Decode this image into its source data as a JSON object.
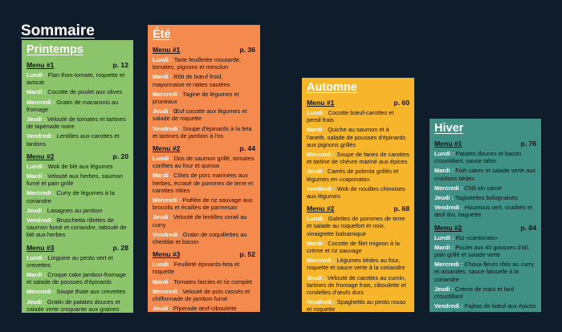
{
  "page_title": "Sommaire",
  "seasons": [
    {
      "id": "printemps",
      "title": "Printemps",
      "menus": [
        {
          "title": "Menu #1",
          "page": "p. 12",
          "days": [
            {
              "day": "Lundi",
              "text": "Flan thon-tomate, roquette et avocat"
            },
            {
              "day": "Mardi",
              "text": "Cocotte de poulet aux olives"
            },
            {
              "day": "Mercredi",
              "text": "Gratin de macaronis au fromage"
            },
            {
              "day": "Jeudi",
              "text": "Velouté de tomates et tartines de tapenade noire"
            },
            {
              "day": "Vendredi",
              "text": "Lentilles aux carottes et lardons"
            }
          ]
        },
        {
          "title": "Menu #2",
          "page": "p. 20",
          "days": [
            {
              "day": "Lundi",
              "text": "Wok de blé aux légumes"
            },
            {
              "day": "Mardi",
              "text": "Velouté aux herbes, saumon fumé et pain grillé"
            },
            {
              "day": "Mercredi",
              "text": "Curry de légumes à la coriandre"
            },
            {
              "day": "Jeudi",
              "text": "Lasagnes au jambon"
            },
            {
              "day": "Vendredi",
              "text": "Bruschetta rillettes de saumon fumé et coriandre, taboulé de blé aux herbes"
            }
          ]
        },
        {
          "title": "Menu #3",
          "page": "p. 28",
          "days": [
            {
              "day": "Lundi",
              "text": "Linguine au pesto vert et crevettes"
            },
            {
              "day": "Mardi",
              "text": "Croque cake jambon-fromage et salade de pousses d'épinards"
            },
            {
              "day": "Mercredi",
              "text": "Soupe thaïe aux crevettes"
            },
            {
              "day": "Jeudi",
              "text": "Gratin de patates douces et salade verte croquante aux graines"
            },
            {
              "day": "Vendredi",
              "text": "Osso-buco au fenouil"
            }
          ]
        }
      ]
    },
    {
      "id": "ete",
      "title": "Été",
      "menus": [
        {
          "title": "Menu #1",
          "page": "p. 36",
          "days": [
            {
              "day": "Lundi",
              "text": "Tarte feuilletée moutarde, tomates, pignons et mesclun"
            },
            {
              "day": "Mardi",
              "text": "Rôti de bœuf froid, mayonnaise et rattes sautées"
            },
            {
              "day": "Mercredi",
              "text": "Tagine de légumes et pruneaux"
            },
            {
              "day": "Jeudi",
              "text": "Œuf cocotte aux légumes et salade de roquette"
            },
            {
              "day": "Vendredi",
              "text": "Soupe d'épinards à la feta et tartines de jambon à l'os"
            }
          ]
        },
        {
          "title": "Menu #2",
          "page": "p. 44",
          "days": [
            {
              "day": "Lundi",
              "text": "Dos de saumon grillé, tomates confites au four et quinoa"
            },
            {
              "day": "Mardi",
              "text": "Côtes de porc marinées aux herbes, écrasé de pommes de terre et carottes rôties"
            },
            {
              "day": "Mercredi",
              "text": "Poêlée de riz sauvage aux brocolis et écailles de parmesan"
            },
            {
              "day": "Jeudi",
              "text": "Velouté de lentilles corail au curry"
            },
            {
              "day": "Vendredi",
              "text": "Gratin de coquillettes au cheddar et bacon"
            }
          ]
        },
        {
          "title": "Menu #3",
          "page": "p. 52",
          "days": [
            {
              "day": "Lundi",
              "text": "Feuilleté épinards-feta et roquette"
            },
            {
              "day": "Mardi",
              "text": "Tomates farcies et riz complet"
            },
            {
              "day": "Mercredi",
              "text": "Velouté de pois cassés et chiffonnade de jambon fumé"
            },
            {
              "day": "Jeudi",
              "text": "Piperade œuf-ciboulette"
            },
            {
              "day": "Vendredi",
              "text": "Salade complète et vinaigrette à l'orange"
            }
          ]
        }
      ]
    },
    {
      "id": "automne",
      "title": "Automne",
      "menus": [
        {
          "title": "Menu #1",
          "page": "p. 60",
          "days": [
            {
              "day": "Lundi",
              "text": "Cocotte bœuf-carottes et persil frais"
            },
            {
              "day": "Mardi",
              "text": "Quiche au saumon et à l'aneth, salade de pousses d'épinards aux pignons grillés"
            },
            {
              "day": "Mercredi",
              "text": "Soupe de fanes de carottes et tartine de chèvre mariné aux épices"
            },
            {
              "day": "Jeudi",
              "text": "Carrés de polenta grillés et légumes en «caponata»"
            },
            {
              "day": "Vendredi",
              "text": "Wok de nouilles chinoises aux légumes"
            }
          ]
        },
        {
          "title": "Menu #2",
          "page": "p. 68",
          "days": [
            {
              "day": "Lundi",
              "text": "Galettes de pommes de terre et salade au roquefort et noix, vinaigrette balsamique"
            },
            {
              "day": "Mardi",
              "text": "Cocotte de filet mignon à la crème et riz sauvage"
            },
            {
              "day": "Mercredi",
              "text": "Légumes tièdes au four, roquette et sauce verte à la coriandre"
            },
            {
              "day": "Jeudi",
              "text": "Velouté de carottes au cumin, tartines de fromage frais, ciboulette et rondelles d'œufs durs"
            },
            {
              "day": "Vendredi",
              "text": "Spaghettis au pesto rosso et roquette"
            }
          ]
        }
      ]
    },
    {
      "id": "hiver",
      "title": "Hiver",
      "menus": [
        {
          "title": "Menu #1",
          "page": "p. 76",
          "days": [
            {
              "day": "Lundi",
              "text": "Patates douces et bacon croustillant, sauce tahin"
            },
            {
              "day": "Mardi",
              "text": "Fish cakes et salade verte aux croûtons tièdes"
            },
            {
              "day": "Mercredi",
              "text": "Chili sin carne"
            },
            {
              "day": "Jeudi",
              "text": "Tagliatelles bolognaises"
            },
            {
              "day": "Vendredi",
              "text": "Houmous vert, crudités et œuf dur, baguette"
            }
          ]
        },
        {
          "title": "Menu #2",
          "page": "p. 84",
          "days": [
            {
              "day": "Lundi",
              "text": "Riz «cantonais»"
            },
            {
              "day": "Mardi",
              "text": "Poulet aux 40 gousses d'ail, pain grillé et salade verte"
            },
            {
              "day": "Mercredi",
              "text": "Choux-fleurs rôtis au curry et amandes, sauce faisselle à la coriandre"
            },
            {
              "day": "Jeudi",
              "text": "Crème de maïs et lard croustillant"
            },
            {
              "day": "Vendredi",
              "text": "Fajitas de bœuf aux épices et persil ciselé"
            }
          ]
        }
      ]
    }
  ],
  "colors": {
    "background": "#0f1d2b",
    "printemps": "#8cc46c",
    "ete": "#f58a4e",
    "automne": "#f6b52b",
    "hiver": "#3f9185"
  }
}
